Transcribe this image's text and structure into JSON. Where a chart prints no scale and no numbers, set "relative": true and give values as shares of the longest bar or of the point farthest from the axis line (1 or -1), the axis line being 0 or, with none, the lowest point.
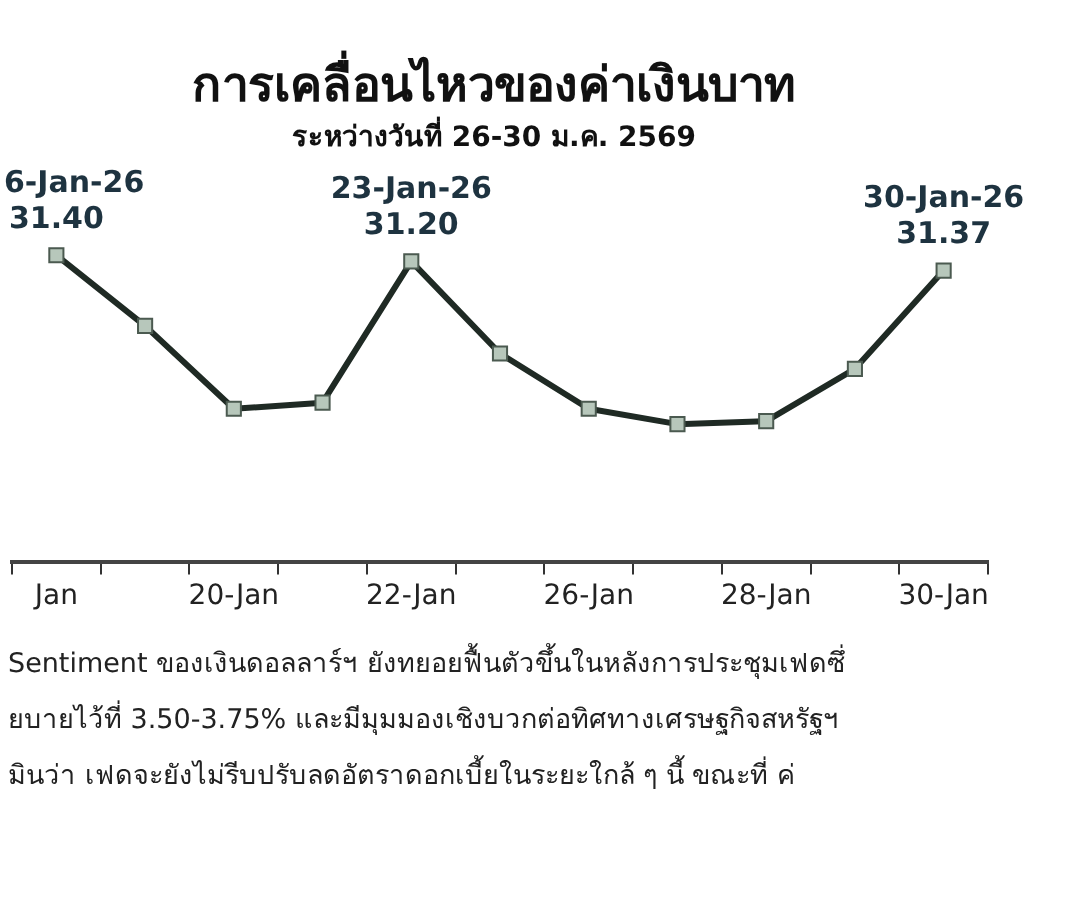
{
  "chart_data": {
    "type": "line",
    "title": "การเคลื่อนไหวของค่าเงินบาท",
    "subtitle": "ระหว่างวันที่ 26-30 ม.ค. 2569",
    "categories": [
      "Jan",
      null,
      "20-Jan",
      null,
      "22-Jan",
      null,
      "26-Jan",
      null,
      "28-Jan",
      null,
      "30-Jan"
    ],
    "values": [
      1,
      0.77,
      0.5,
      0.52,
      0.98,
      0.68,
      0.5,
      0.45,
      0.46,
      0.63,
      0.95
    ],
    "relative": true,
    "color": "#1f2a24",
    "marker": "square",
    "line_style": "solid",
    "grid": false,
    "legend": false,
    "annotations": [
      "6-Jan-26\n31.40",
      "23-Jan-26\n31.20",
      "30-Jan-26\n31.37",
      "Sentiment ของเงินดอลลาร์ฯ ยังทยอยฟื้นตัวขึ้นในหลังการประชุมเฟดซึ่",
      "ยบายไว้ที่ 3.50-3.75% และมีมุมมองเชิงบวกต่อทิศทางเศรษฐกิจสหรัฐฯ",
      "มินว่า เฟดจะยังไม่รีบปรับลดอัตราดอกเบี้ยในระยะใกล้ ๆ นี้ ขณะที่ ค่"
    ]
  }
}
